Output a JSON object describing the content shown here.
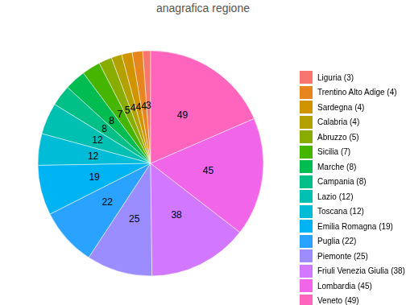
{
  "chart_data": {
    "type": "pie",
    "title": "anagrafica regione",
    "categories": [
      "Liguria (3)",
      "Trentino Alto Adige (4)",
      "Sardegna (4)",
      "Calabria (4)",
      "Abruzzo (5)",
      "Sicilia (7)",
      "Marche (8)",
      "Campania (8)",
      "Lazio (12)",
      "Toscana (12)",
      "Emilia Romagna (19)",
      "Puglia (22)",
      "Piemonte (25)",
      "Friuli Venezia Giulia (38)",
      "Lombardia (45)",
      "Veneto (49)"
    ],
    "values": [
      3,
      4,
      4,
      4,
      5,
      7,
      8,
      8,
      12,
      12,
      19,
      22,
      25,
      38,
      45,
      49
    ],
    "colors": [
      "#F8766D",
      "#E7851E",
      "#D09400",
      "#B2A100",
      "#89AC00",
      "#45B500",
      "#00BC51",
      "#00C087",
      "#00C0B2",
      "#00BCD6",
      "#00B3F2",
      "#29A3FF",
      "#9C8DFF",
      "#D277FF",
      "#F166E8",
      "#FF65BC"
    ],
    "data_labels": true,
    "legend": "right"
  }
}
